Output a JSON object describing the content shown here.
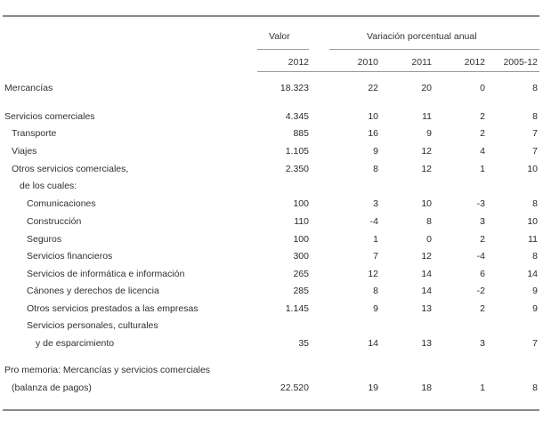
{
  "header": {
    "valor": "Valor",
    "variacion": "Variación porcentual anual",
    "year_valor": "2012",
    "years": [
      "2010",
      "2011",
      "2012",
      "2005-12"
    ]
  },
  "rows": [
    {
      "label": "Mercancías",
      "value": "18.323",
      "v2010": "22",
      "v2011": "20",
      "v2012": "0",
      "v0512": "8"
    },
    {
      "label": "Servicios comerciales",
      "value": "4.345",
      "v2010": "10",
      "v2011": "11",
      "v2012": "2",
      "v0512": "8"
    },
    {
      "label": "Transporte",
      "value": "885",
      "v2010": "16",
      "v2011": "9",
      "v2012": "2",
      "v0512": "7"
    },
    {
      "label": "Viajes",
      "value": "1.105",
      "v2010": "9",
      "v2011": "12",
      "v2012": "4",
      "v0512": "7"
    },
    {
      "label": "Otros servicios comerciales,",
      "value": "2.350",
      "v2010": "8",
      "v2011": "12",
      "v2012": "1",
      "v0512": "10"
    },
    {
      "label": "de los cuales:",
      "value": "",
      "v2010": "",
      "v2011": "",
      "v2012": "",
      "v0512": ""
    },
    {
      "label": "Comunicaciones",
      "value": "100",
      "v2010": "3",
      "v2011": "10",
      "v2012": "-3",
      "v0512": "8"
    },
    {
      "label": "Construcción",
      "value": "110",
      "v2010": "-4",
      "v2011": "8",
      "v2012": "3",
      "v0512": "10"
    },
    {
      "label": "Seguros",
      "value": "100",
      "v2010": "1",
      "v2011": "0",
      "v2012": "2",
      "v0512": "11"
    },
    {
      "label": "Servicios financieros",
      "value": "300",
      "v2010": "7",
      "v2011": "12",
      "v2012": "-4",
      "v0512": "8"
    },
    {
      "label": "Servicios de informática e información",
      "value": "265",
      "v2010": "12",
      "v2011": "14",
      "v2012": "6",
      "v0512": "14"
    },
    {
      "label": "Cánones y derechos de licencia",
      "value": "285",
      "v2010": "8",
      "v2011": "14",
      "v2012": "-2",
      "v0512": "9"
    },
    {
      "label": "Otros servicios prestados a las empresas",
      "value": "1.145",
      "v2010": "9",
      "v2011": "13",
      "v2012": "2",
      "v0512": "9"
    },
    {
      "label": "Servicios personales, culturales",
      "value": "",
      "v2010": "",
      "v2011": "",
      "v2012": "",
      "v0512": ""
    },
    {
      "label": "y de esparcimiento",
      "value": "35",
      "v2010": "14",
      "v2011": "13",
      "v2012": "3",
      "v0512": "7"
    },
    {
      "label": "Pro memoria: Mercancías y servicios comerciales",
      "value": "",
      "v2010": "",
      "v2011": "",
      "v2012": "",
      "v0512": ""
    },
    {
      "label": "(balanza de pagos)",
      "value": "22.520",
      "v2010": "19",
      "v2011": "18",
      "v2012": "1",
      "v0512": "8"
    }
  ]
}
